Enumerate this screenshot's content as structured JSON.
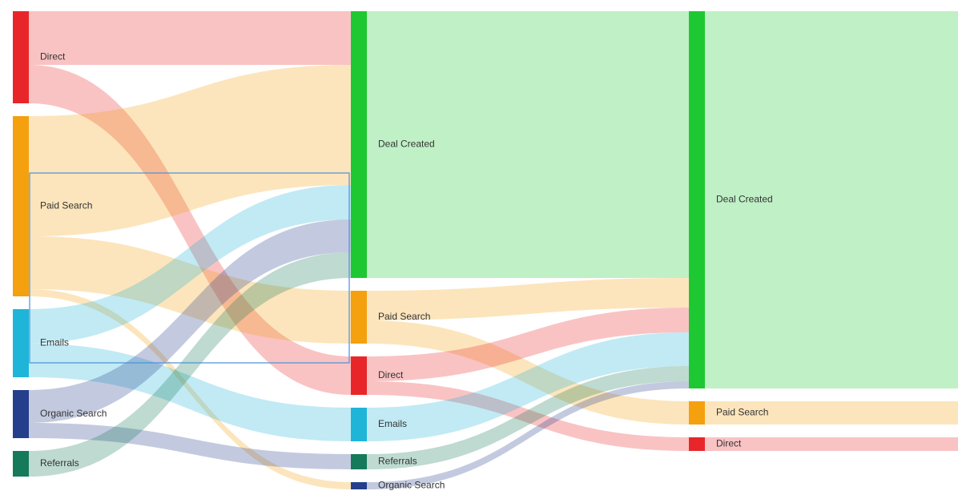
{
  "chart_data": {
    "type": "sankey",
    "stages": [
      {
        "nodes": [
          {
            "name": "Direct",
            "color": "#e8262a"
          },
          {
            "name": "Paid Search",
            "color": "#f5a00f"
          },
          {
            "name": "Emails",
            "color": "#1fb5d9"
          },
          {
            "name": "Organic Search",
            "color": "#263f8c"
          },
          {
            "name": "Referrals",
            "color": "#157a5a"
          }
        ],
        "links": [
          {
            "source": "Direct",
            "target": "Deal Created",
            "value": 67
          },
          {
            "source": "Direct",
            "target": "Direct",
            "value": 48
          },
          {
            "source": "Paid Search",
            "target": "Deal Created",
            "value": 150
          },
          {
            "source": "Paid Search",
            "target": "Paid Search",
            "value": 66
          },
          {
            "source": "Paid Search",
            "target": "Organic Search",
            "value": 9
          },
          {
            "source": "Emails",
            "target": "Deal Created",
            "value": 43
          },
          {
            "source": "Emails",
            "target": "Emails",
            "value": 42
          },
          {
            "source": "Organic Search",
            "target": "Deal Created",
            "value": 41
          },
          {
            "source": "Organic Search",
            "target": "Referrals",
            "value": 19
          },
          {
            "source": "Referrals",
            "target": "Deal Created",
            "value": 32
          }
        ]
      },
      {
        "nodes": [
          {
            "name": "Deal Created",
            "color": "#1ec832"
          },
          {
            "name": "Paid Search",
            "color": "#f5a00f"
          },
          {
            "name": "Direct",
            "color": "#e8262a"
          },
          {
            "name": "Emails",
            "color": "#1fb5d9"
          },
          {
            "name": "Referrals",
            "color": "#157a5a"
          },
          {
            "name": "Organic Search",
            "color": "#263f8c"
          }
        ],
        "links": [
          {
            "source": "Deal Created",
            "target": "Deal Created",
            "value": 333
          },
          {
            "source": "Paid Search",
            "target": "Deal Created",
            "value": 37
          },
          {
            "source": "Paid Search",
            "target": "Paid Search",
            "value": 29
          },
          {
            "source": "Direct",
            "target": "Deal Created",
            "value": 31
          },
          {
            "source": "Direct",
            "target": "Direct",
            "value": 17
          },
          {
            "source": "Emails",
            "target": "Deal Created",
            "value": 42
          },
          {
            "source": "Referrals",
            "target": "Deal Created",
            "value": 19
          },
          {
            "source": "Organic Search",
            "target": "Deal Created",
            "value": 9
          }
        ]
      },
      {
        "nodes": [
          {
            "name": "Deal Created",
            "color": "#1ec832"
          },
          {
            "name": "Paid Search",
            "color": "#f5a00f"
          },
          {
            "name": "Direct",
            "color": "#e8262a"
          }
        ]
      }
    ]
  }
}
